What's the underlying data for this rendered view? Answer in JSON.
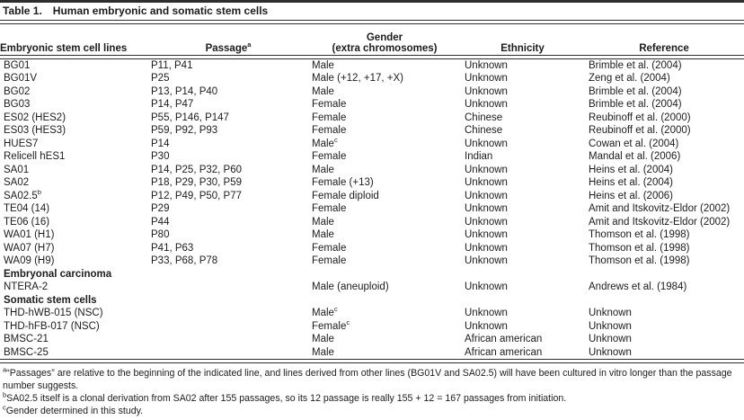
{
  "colors": {
    "background": "#ffffff",
    "text": "#1c1c1c",
    "rule": "#2e2e2e"
  },
  "table": {
    "title_label": "Table 1.",
    "title_text": "Human embryonic and somatic stem cells",
    "columns": [
      {
        "label": "Embryonic stem cell lines"
      },
      {
        "label": "Passage",
        "sup": "a"
      },
      {
        "label": "Gender",
        "label2": "(extra chromosomes)"
      },
      {
        "label": "Ethnicity"
      },
      {
        "label": "Reference"
      }
    ],
    "rows": [
      {
        "cells": [
          "BG01",
          "P11, P41",
          "Male",
          "Unknown",
          "Brimble et al. (2004)"
        ]
      },
      {
        "cells": [
          "BG01V",
          "P25",
          "Male (+12, +17, +X)",
          "Unknown",
          "Zeng et al. (2004)"
        ]
      },
      {
        "cells": [
          "BG02",
          "P13, P14, P40",
          "Male",
          "Unknown",
          "Brimble et al. (2004)"
        ]
      },
      {
        "cells": [
          "BG03",
          "P14, P47",
          "Female",
          "Unknown",
          "Brimble et al. (2004)"
        ]
      },
      {
        "cells": [
          "ES02 (HES2)",
          "P55, P146, P147",
          "Female",
          "Chinese",
          "Reubinoff et al. (2000)"
        ]
      },
      {
        "cells": [
          "ES03 (HES3)",
          "P59, P92, P93",
          "Female",
          "Chinese",
          "Reubinoff et al. (2000)"
        ]
      },
      {
        "cells": [
          "HUES7",
          "P14",
          {
            "text": "Male",
            "sup": "c"
          },
          "Unknown",
          "Cowan et al. (2004)"
        ]
      },
      {
        "cells": [
          "Relicell hES1",
          "P30",
          "Female",
          "Indian",
          "Mandal et al. (2006)"
        ]
      },
      {
        "cells": [
          "SA01",
          "P14, P25, P32, P60",
          "Male",
          "Unknown",
          "Heins et al. (2004)"
        ]
      },
      {
        "cells": [
          "SA02",
          "P18, P29, P30, P59",
          "Female (+13)",
          "Unknown",
          "Heins et al. (2004)"
        ]
      },
      {
        "cells": [
          {
            "text": "SA02.5",
            "sup": "b"
          },
          "P12, P49, P50, P77",
          "Female diploid",
          "Unknown",
          "Heins et al. (2006)"
        ]
      },
      {
        "cells": [
          "TE04 (14)",
          "P29",
          "Female",
          "Unknown",
          "Amit and Itskovitz-Eldor (2002)"
        ]
      },
      {
        "cells": [
          "TE06 (16)",
          "P44",
          "Male",
          "Unknown",
          "Amit and Itskovitz-Eldor (2002)"
        ]
      },
      {
        "cells": [
          "WA01 (H1)",
          "P80",
          "Male",
          "Unknown",
          "Thomson et al. (1998)"
        ]
      },
      {
        "cells": [
          "WA07 (H7)",
          "P41, P63",
          "Female",
          "Unknown",
          "Thomson et al. (1998)"
        ]
      },
      {
        "cells": [
          "WA09 (H9)",
          "P33, P68, P78",
          "Female",
          "Unknown",
          "Thomson et al. (1998)"
        ]
      },
      {
        "section": true,
        "cells": [
          "Embryonal carcinoma",
          "",
          "",
          "",
          ""
        ]
      },
      {
        "cells": [
          "NTERA-2",
          "",
          "Male (aneuploid)",
          "Unknown",
          "Andrews et al. (1984)"
        ]
      },
      {
        "section": true,
        "cells": [
          "Somatic stem cells",
          "",
          "",
          "",
          ""
        ]
      },
      {
        "cells": [
          "THD-hWB-015 (NSC)",
          "",
          {
            "text": "Male",
            "sup": "c"
          },
          "Unknown",
          "Unknown"
        ]
      },
      {
        "cells": [
          "THD-hFB-017 (NSC)",
          "",
          {
            "text": "Female",
            "sup": "c"
          },
          "Unknown",
          "Unknown"
        ]
      },
      {
        "cells": [
          "BMSC-21",
          "",
          "Male",
          "African american",
          "Unknown"
        ]
      },
      {
        "cells": [
          "BMSC-25",
          "",
          "Male",
          "African american",
          "Unknown"
        ]
      }
    ],
    "footnotes": [
      {
        "sup": "a",
        "text": "“Passages” are relative to the beginning of the indicated line, and lines derived from other lines (BG01V and SA02.5) will have been cultured in vitro longer than the passage number suggests."
      },
      {
        "sup": "b",
        "text": "SA02.5 itself is a clonal derivation from SA02 after 155 passages, so its 12 passage is really 155 + 12 = 167 passages from initiation."
      },
      {
        "sup": "c",
        "text": "Gender determined in this study."
      }
    ]
  }
}
